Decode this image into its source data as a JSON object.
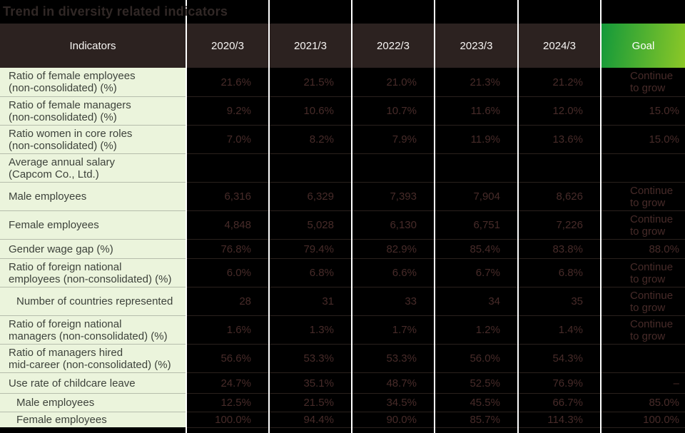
{
  "title": "Trend in diversity related indicators",
  "table": {
    "header": {
      "indicators": "Indicators",
      "years": [
        "2020/3",
        "2021/3",
        "2022/3",
        "2023/3",
        "2024/3"
      ],
      "goal": "Goal"
    },
    "rows": [
      {
        "label_lines": [
          "Ratio of female employees",
          "(non-consolidated) (%)"
        ],
        "indent": false,
        "values": [
          "21.6%",
          "21.5%",
          "21.0%",
          "21.3%",
          "21.2%"
        ],
        "goal_lines": [
          "Continue",
          "to grow"
        ]
      },
      {
        "label_lines": [
          "Ratio of female managers",
          "(non-consolidated) (%)"
        ],
        "indent": false,
        "values": [
          "9.2%",
          "10.6%",
          "10.7%",
          "11.6%",
          "12.0%"
        ],
        "goal_lines": [
          "15.0%"
        ]
      },
      {
        "label_lines": [
          "Ratio women in core roles",
          "(non-consolidated) (%)"
        ],
        "indent": false,
        "values": [
          "7.0%",
          "8.2%",
          "7.9%",
          "11.9%",
          "13.6%"
        ],
        "goal_lines": [
          "15.0%"
        ]
      },
      {
        "label_lines": [
          "Average annual salary",
          "(Capcom Co., Ltd.)"
        ],
        "indent": false,
        "values": [
          "",
          "",
          "",
          "",
          ""
        ],
        "goal_lines": []
      },
      {
        "label_lines": [
          "Male employees"
        ],
        "indent": false,
        "values": [
          "6,316",
          "6,329",
          "7,393",
          "7,904",
          "8,626"
        ],
        "goal_lines": [
          "Continue",
          "to grow"
        ]
      },
      {
        "label_lines": [
          "Female employees"
        ],
        "indent": false,
        "values": [
          "4,848",
          "5,028",
          "6,130",
          "6,751",
          "7,226"
        ],
        "goal_lines": [
          "Continue",
          "to grow"
        ]
      },
      {
        "label_lines": [
          "Gender wage gap (%)"
        ],
        "indent": false,
        "values": [
          "76.8%",
          "79.4%",
          "82.9%",
          "85.4%",
          "83.8%"
        ],
        "goal_lines": [
          "88.0%"
        ]
      },
      {
        "label_lines": [
          "Ratio of foreign national",
          "employees (non-consolidated) (%)"
        ],
        "indent": false,
        "values": [
          "6.0%",
          "6.8%",
          "6.6%",
          "6.7%",
          "6.8%"
        ],
        "goal_lines": [
          "Continue",
          "to grow"
        ]
      },
      {
        "label_lines": [
          "Number of countries represented"
        ],
        "indent": true,
        "values": [
          "28",
          "31",
          "33",
          "34",
          "35"
        ],
        "goal_lines": [
          "Continue",
          "to grow"
        ]
      },
      {
        "label_lines": [
          "Ratio of foreign national",
          "managers (non-consolidated) (%)"
        ],
        "indent": false,
        "values": [
          "1.6%",
          "1.3%",
          "1.7%",
          "1.2%",
          "1.4%"
        ],
        "goal_lines": [
          "Continue",
          "to grow"
        ]
      },
      {
        "label_lines": [
          "Ratio of managers hired",
          "mid-career (non-consolidated) (%)"
        ],
        "indent": false,
        "values": [
          "56.6%",
          "53.3%",
          "53.3%",
          "56.0%",
          "54.3%"
        ],
        "goal_lines": []
      },
      {
        "label_lines": [
          "Use rate of childcare leave"
        ],
        "indent": false,
        "values": [
          "24.7%",
          "35.1%",
          "48.7%",
          "52.5%",
          "76.9%"
        ],
        "goal_lines": [
          "–"
        ]
      },
      {
        "label_lines": [
          "Male employees"
        ],
        "indent": true,
        "values": [
          "12.5%",
          "21.5%",
          "34.5%",
          "45.5%",
          "66.7%"
        ],
        "goal_lines": [
          "85.0%"
        ]
      },
      {
        "label_lines": [
          "Female employees"
        ],
        "indent": true,
        "values": [
          "100.0%",
          "94.4%",
          "90.0%",
          "85.7%",
          "114.3%"
        ],
        "goal_lines": [
          "100.0%"
        ]
      }
    ]
  },
  "colors": {
    "goal_gradient_start": "#13993a",
    "goal_gradient_end": "#8cc827",
    "header_bg": "#2c2220",
    "label_bg": "#ebf4dc",
    "label_text": "#3d423b",
    "value_text": "#472b29",
    "column_separator": "#ffffff",
    "row_separator_light": "#b6bdac",
    "row_separator_dark": "#2a211d",
    "background": "#000000"
  }
}
